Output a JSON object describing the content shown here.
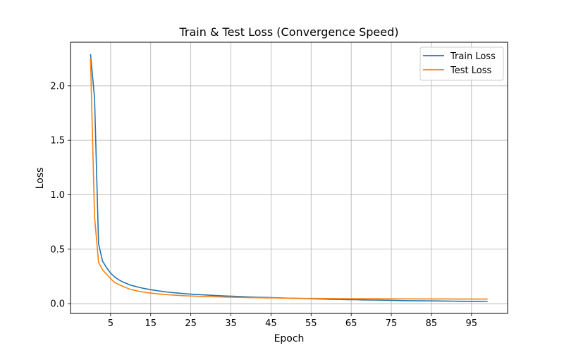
{
  "chart_data": {
    "type": "line",
    "title": "Train & Test Loss (Convergence Speed)",
    "xlabel": "Epoch",
    "ylabel": "Loss",
    "xlim": [
      -5,
      104
    ],
    "ylim": [
      -0.09,
      2.4
    ],
    "xticks": [
      5,
      15,
      25,
      35,
      45,
      55,
      65,
      75,
      85,
      95
    ],
    "yticks": [
      0.0,
      0.5,
      1.0,
      1.5,
      2.0
    ],
    "ytick_labels": [
      "0.0",
      "0.5",
      "1.0",
      "1.5",
      "2.0"
    ],
    "grid": true,
    "legend_position": "top-right",
    "series": [
      {
        "name": "Train Loss",
        "color": "#1f77b4",
        "x": [
          0,
          1,
          2,
          3,
          4,
          5,
          6,
          7,
          8,
          9,
          10,
          11,
          12,
          13,
          14,
          15,
          16,
          17,
          18,
          19,
          20,
          22,
          24,
          26,
          28,
          30,
          32,
          34,
          36,
          38,
          40,
          42,
          44,
          46,
          48,
          50,
          52,
          54,
          56,
          58,
          60,
          62,
          64,
          66,
          68,
          70,
          72,
          74,
          76,
          78,
          80,
          82,
          84,
          86,
          88,
          90,
          92,
          94,
          96,
          98,
          99
        ],
        "y": [
          2.29,
          1.89,
          0.55,
          0.39,
          0.33,
          0.28,
          0.245,
          0.22,
          0.2,
          0.185,
          0.17,
          0.16,
          0.15,
          0.142,
          0.135,
          0.128,
          0.122,
          0.117,
          0.112,
          0.107,
          0.103,
          0.096,
          0.09,
          0.085,
          0.081,
          0.077,
          0.073,
          0.07,
          0.067,
          0.064,
          0.061,
          0.059,
          0.057,
          0.054,
          0.052,
          0.05,
          0.048,
          0.046,
          0.044,
          0.042,
          0.04,
          0.039,
          0.037,
          0.036,
          0.034,
          0.033,
          0.032,
          0.031,
          0.029,
          0.028,
          0.027,
          0.026,
          0.025,
          0.025,
          0.024,
          0.023,
          0.022,
          0.021,
          0.021,
          0.02,
          0.02
        ]
      },
      {
        "name": "Test Loss",
        "color": "#ff7f0e",
        "x": [
          0,
          1,
          2,
          3,
          4,
          5,
          6,
          7,
          8,
          9,
          10,
          11,
          12,
          13,
          14,
          15,
          16,
          17,
          18,
          19,
          20,
          22,
          24,
          26,
          28,
          30,
          32,
          34,
          36,
          38,
          40,
          42,
          44,
          46,
          48,
          50,
          52,
          54,
          56,
          58,
          60,
          62,
          64,
          66,
          68,
          70,
          72,
          74,
          76,
          78,
          80,
          82,
          84,
          86,
          88,
          90,
          92,
          94,
          96,
          98,
          99
        ],
        "y": [
          2.25,
          0.8,
          0.38,
          0.31,
          0.27,
          0.23,
          0.195,
          0.175,
          0.16,
          0.145,
          0.13,
          0.122,
          0.114,
          0.107,
          0.101,
          0.097,
          0.093,
          0.089,
          0.086,
          0.083,
          0.08,
          0.075,
          0.072,
          0.069,
          0.066,
          0.064,
          0.062,
          0.06,
          0.058,
          0.057,
          0.055,
          0.054,
          0.053,
          0.052,
          0.051,
          0.05,
          0.049,
          0.048,
          0.048,
          0.047,
          0.047,
          0.046,
          0.046,
          0.046,
          0.045,
          0.045,
          0.045,
          0.044,
          0.044,
          0.044,
          0.044,
          0.043,
          0.043,
          0.043,
          0.043,
          0.043,
          0.042,
          0.042,
          0.042,
          0.042,
          0.042
        ]
      }
    ]
  }
}
